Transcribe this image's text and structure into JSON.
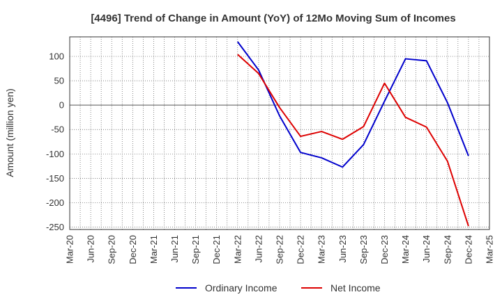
{
  "chart_data": {
    "type": "line",
    "title": "[4496]  Trend of Change in Amount (YoY) of 12Mo Moving Sum of Incomes",
    "xlabel": "",
    "ylabel": "Amount (million yen)",
    "x": [
      "Mar-20",
      "Jun-20",
      "Sep-20",
      "Dec-20",
      "Mar-21",
      "Jun-21",
      "Sep-21",
      "Dec-21",
      "Mar-22",
      "Jun-22",
      "Sep-22",
      "Dec-22",
      "Mar-23",
      "Jun-23",
      "Sep-23",
      "Dec-23",
      "Mar-24",
      "Jun-24",
      "Sep-24",
      "Dec-24",
      "Mar-25"
    ],
    "ylim": [
      -255,
      140
    ],
    "yticks": [
      100,
      50,
      0,
      -50,
      -100,
      -150,
      -200,
      -250
    ],
    "grid": true,
    "legend_position": "bottom",
    "series": [
      {
        "name": "Ordinary Income",
        "color": "#0000cc",
        "values": [
          null,
          null,
          null,
          null,
          null,
          null,
          null,
          null,
          130,
          72,
          -22,
          -97,
          -108,
          -127,
          -81,
          8,
          95,
          91,
          5,
          -104,
          null
        ]
      },
      {
        "name": "Net Income",
        "color": "#dd0000",
        "values": [
          null,
          null,
          null,
          null,
          null,
          null,
          null,
          null,
          104,
          65,
          -5,
          -64,
          -54,
          -70,
          -44,
          45,
          -25,
          -45,
          -115,
          -248,
          null
        ]
      }
    ]
  }
}
